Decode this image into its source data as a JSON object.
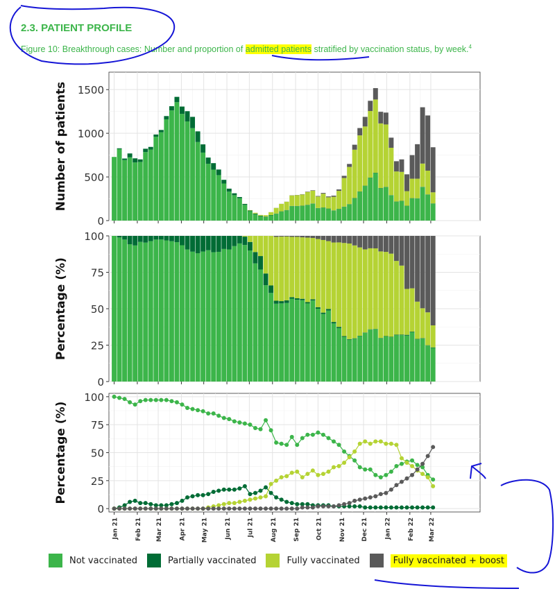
{
  "header": {
    "section_title": "2.3. PATIENT PROFILE",
    "caption_pre": "Figure 10: Breakthrough cases: Number and proportion of ",
    "caption_highlight": "admitted patients",
    "caption_post": " stratified by vaccination status, by week.",
    "caption_footnote": "4"
  },
  "colors": {
    "not_vaccinated": "#3cb54a",
    "partially_vaccinated": "#006c35",
    "fully_vaccinated": "#b5d334",
    "boosted": "#5a5a5a",
    "highlight": "#ffff00",
    "ink": "#1515d6"
  },
  "legend": [
    {
      "label": "Not vaccinated",
      "color": "#3cb54a"
    },
    {
      "label": "Partially vaccinated",
      "color": "#006c35"
    },
    {
      "label": "Fully vaccinated",
      "color": "#b5d334"
    },
    {
      "label": "Fully vaccinated + boost",
      "color": "#5a5a5a",
      "highlighted": true
    }
  ],
  "chart_data": [
    {
      "type": "bar",
      "stacked": true,
      "ylabel": "Number of patients",
      "yticks": [
        0,
        500,
        1000,
        1500
      ],
      "ylim": [
        0,
        1700
      ],
      "xticks": [
        "Jan 21",
        "Feb 21",
        "Mar 21",
        "Apr 21",
        "May 21",
        "Jun 21",
        "Jul 21",
        "Aug 21",
        "Sep 21",
        "Oct 21",
        "Nov 21",
        "Dec 21",
        "Jan 22",
        "Feb 22",
        "Mar 22"
      ],
      "xlim": [
        -1,
        70
      ],
      "grid": true,
      "weeks": 62,
      "series": [
        {
          "name": "Not vaccinated",
          "values": [
            729,
            819,
            693,
            725,
            666,
            672,
            785,
            814,
            961,
            1012,
            1160,
            1262,
            1356,
            1222,
            1136,
            1059,
            900,
            779,
            651,
            584,
            521,
            425,
            332,
            291,
            256,
            180,
            108,
            73,
            50,
            41,
            59,
            78,
            103,
            117,
            165,
            165,
            168,
            178,
            193,
            141,
            147,
            135,
            114,
            131,
            157,
            186,
            255,
            330,
            397,
            489,
            545,
            370,
            383,
            289,
            216,
            223,
            167,
            254,
            253,
            384,
            297,
            194
          ]
        },
        {
          "name": "Partially vaccinated",
          "values": [
            0,
            9,
            18,
            44,
            47,
            29,
            38,
            30,
            25,
            26,
            37,
            48,
            61,
            84,
            117,
            129,
            122,
            94,
            71,
            74,
            64,
            42,
            34,
            22,
            14,
            11,
            7,
            7,
            6,
            5,
            5,
            3,
            3,
            4,
            3,
            3,
            3,
            3,
            3,
            3,
            3,
            3,
            3,
            3,
            3,
            3,
            3,
            3,
            3,
            3,
            3,
            3,
            3,
            3,
            3,
            3,
            3,
            3,
            3,
            3,
            3,
            3
          ]
        },
        {
          "name": "Fully vaccinated",
          "values": [
            0,
            0,
            0,
            0,
            0,
            0,
            0,
            0,
            0,
            0,
            0,
            0,
            0,
            0,
            0,
            0,
            0,
            0,
            0,
            0,
            0,
            0,
            0,
            0,
            0,
            1,
            5,
            10,
            9,
            16,
            33,
            64,
            85,
            95,
            120,
            124,
            127,
            147,
            146,
            132,
            158,
            129,
            156,
            207,
            328,
            426,
            554,
            643,
            678,
            763,
            839,
            740,
            715,
            542,
            344,
            332,
            167,
            223,
            224,
            266,
            272,
            127
          ]
        },
        {
          "name": "Fully vaccinated + boost",
          "values": [
            0,
            0,
            0,
            0,
            0,
            0,
            0,
            0,
            0,
            0,
            0,
            0,
            0,
            0,
            0,
            0,
            0,
            0,
            0,
            0,
            0,
            0,
            0,
            0,
            0,
            0,
            0,
            0,
            0,
            0,
            0,
            1,
            1,
            1,
            2,
            2,
            3,
            4,
            5,
            6,
            9,
            10,
            13,
            16,
            25,
            34,
            57,
            84,
            110,
            117,
            130,
            133,
            136,
            116,
            117,
            143,
            193,
            270,
            395,
            645,
            632,
            516
          ]
        }
      ]
    },
    {
      "type": "bar",
      "stacked": true,
      "ylabel": "Percentage (%)",
      "yticks": [
        0,
        25,
        50,
        75,
        100
      ],
      "ylim": [
        0,
        100
      ],
      "xlim": [
        -1,
        70
      ],
      "grid": true,
      "series_ref": "percent of weekly total, same series as above"
    },
    {
      "type": "line",
      "ylabel": "Percentage (%)",
      "yticks": [
        0,
        25,
        50,
        75,
        100
      ],
      "ylim": [
        -3,
        103
      ],
      "xticks": [
        "Jan 21",
        "Feb 21",
        "Mar 21",
        "Apr 21",
        "May 21",
        "Jun 21",
        "Jul 21",
        "Aug 21",
        "Sep 21",
        "Oct 21",
        "Nov 21",
        "Dec 21",
        "Jan 22",
        "Feb 22",
        "Mar 22"
      ],
      "xlim": [
        -1,
        70
      ],
      "grid": true,
      "series": [
        {
          "name": "Not vaccinated",
          "values": [
            100,
            99,
            98,
            95,
            93,
            96,
            97,
            97,
            97,
            97,
            97,
            96,
            95,
            93,
            90,
            89,
            88,
            87,
            85,
            85,
            83,
            81,
            80,
            78,
            77,
            76,
            75,
            72,
            71,
            79,
            70,
            59,
            58,
            57,
            64,
            57,
            63,
            66,
            66,
            68,
            66,
            63,
            60,
            57,
            51,
            47,
            43,
            37,
            35,
            35,
            30,
            28,
            30,
            33,
            38,
            40,
            42,
            43,
            39,
            37,
            30,
            26
          ]
        },
        {
          "name": "Partially vaccinated",
          "values": [
            0,
            1,
            3,
            6,
            7,
            5,
            5,
            4,
            3,
            3,
            3,
            4,
            5,
            7,
            10,
            11,
            12,
            12,
            13,
            15,
            16,
            17,
            17,
            17,
            18,
            20,
            13,
            14,
            16,
            19,
            14,
            10,
            8,
            6,
            5,
            4,
            4,
            4,
            3,
            3,
            3,
            3,
            2,
            2,
            2,
            2,
            2,
            2,
            1,
            1,
            1,
            1,
            1,
            1,
            1,
            1,
            1,
            1,
            1,
            1,
            1,
            1
          ]
        },
        {
          "name": "Fully vaccinated",
          "values": [
            0,
            0,
            0,
            0,
            0,
            0,
            0,
            0,
            0,
            0,
            0,
            0,
            0,
            0,
            0,
            0,
            0,
            0,
            1,
            2,
            3,
            4,
            5,
            5,
            6,
            7,
            8,
            9,
            10,
            11,
            22,
            25,
            28,
            29,
            32,
            33,
            28,
            31,
            34,
            30,
            31,
            33,
            37,
            38,
            41,
            46,
            51,
            58,
            60,
            58,
            60,
            60,
            58,
            58,
            57,
            45,
            41,
            38,
            34,
            31,
            28,
            20
          ]
        },
        {
          "name": "Fully vaccinated + boost",
          "values": [
            0,
            0,
            0,
            0,
            0,
            0,
            0,
            0,
            0,
            0,
            0,
            0,
            0,
            0,
            0,
            0,
            0,
            0,
            0,
            0,
            0,
            0,
            0,
            0,
            0,
            0,
            0,
            0,
            0,
            0,
            0,
            0,
            0,
            0,
            0,
            0,
            1,
            1,
            1,
            2,
            2,
            2,
            2,
            3,
            4,
            5,
            7,
            8,
            9,
            10,
            11,
            13,
            14,
            17,
            21,
            24,
            27,
            30,
            35,
            40,
            47,
            55
          ]
        }
      ]
    }
  ]
}
